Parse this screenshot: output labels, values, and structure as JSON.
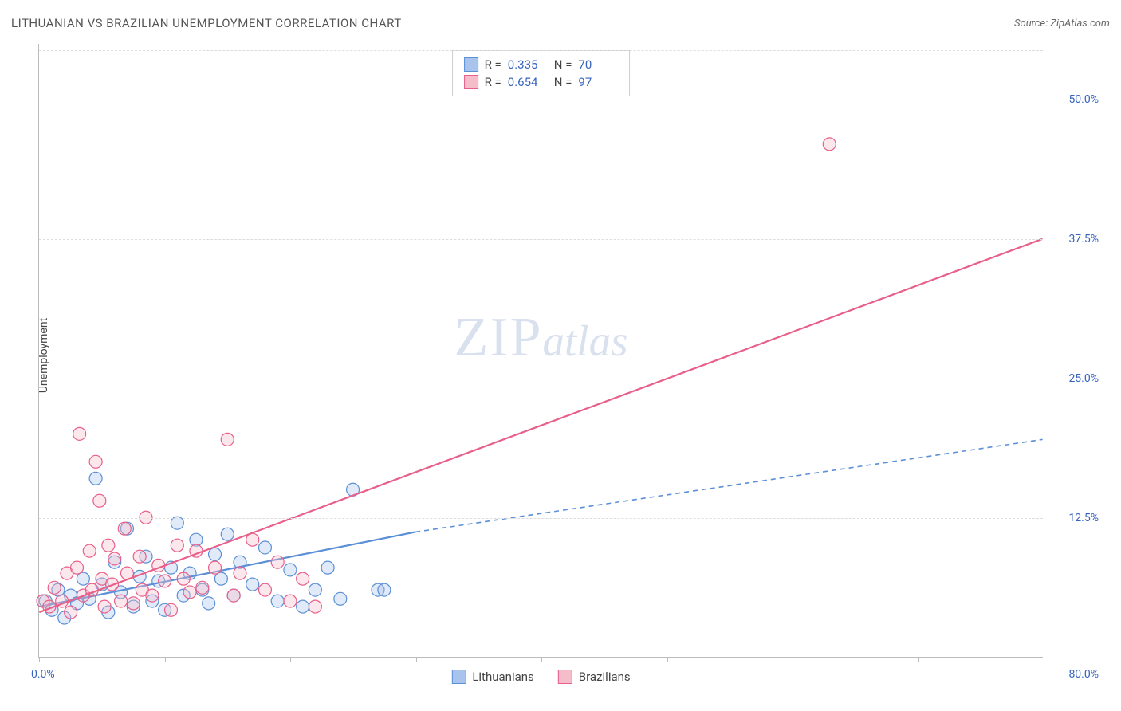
{
  "title": "LITHUANIAN VS BRAZILIAN UNEMPLOYMENT CORRELATION CHART",
  "source_label": "Source: ZipAtlas.com",
  "ylabel": "Unemployment",
  "watermark": {
    "zip": "ZIP",
    "atlas": "atlas"
  },
  "chart": {
    "type": "scatter-with-regression",
    "background_color": "#ffffff",
    "grid_color": "#dddddd",
    "axis_color": "#bbbbbb",
    "tick_label_color": "#3864c0",
    "tick_fontsize": 14,
    "xlim": [
      0,
      80
    ],
    "ylim": [
      0,
      55
    ],
    "xticks": [
      0,
      10,
      20,
      30,
      40,
      50,
      60,
      70,
      80
    ],
    "xtick_labels": {
      "0": "0.0%",
      "80": "80.0%"
    },
    "yticks": [
      12.5,
      25.0,
      37.5,
      50.0
    ],
    "ytick_labels": [
      "12.5%",
      "25.0%",
      "37.5%",
      "50.0%"
    ],
    "marker_radius": 8,
    "marker_fill_opacity": 0.35,
    "marker_stroke_width": 1.2,
    "series": [
      {
        "name": "Lithuanians",
        "color_fill": "#a9c4ec",
        "color_stroke": "#5b8fd6",
        "r_value": "0.335",
        "n_value": "70",
        "regression": {
          "solid": {
            "x1": 0,
            "y1": 4.5,
            "x2": 30,
            "y2": 11.2,
            "stroke_width": 2.2
          },
          "dashed": {
            "x1": 30,
            "y1": 11.2,
            "x2": 80,
            "y2": 19.5,
            "stroke_width": 1.6,
            "dash": "6,5"
          }
        },
        "points": [
          [
            0.5,
            5.0
          ],
          [
            1.0,
            4.2
          ],
          [
            1.5,
            6.0
          ],
          [
            2.0,
            3.5
          ],
          [
            2.5,
            5.5
          ],
          [
            3.0,
            4.8
          ],
          [
            3.5,
            7.0
          ],
          [
            4.0,
            5.2
          ],
          [
            4.5,
            16.0
          ],
          [
            5.0,
            6.5
          ],
          [
            5.5,
            4.0
          ],
          [
            6.0,
            8.5
          ],
          [
            6.5,
            5.8
          ],
          [
            7.0,
            11.5
          ],
          [
            7.5,
            4.5
          ],
          [
            8.0,
            7.2
          ],
          [
            8.5,
            9.0
          ],
          [
            9.0,
            5.0
          ],
          [
            9.5,
            6.8
          ],
          [
            10.0,
            4.2
          ],
          [
            10.5,
            8.0
          ],
          [
            11.0,
            12.0
          ],
          [
            11.5,
            5.5
          ],
          [
            12.0,
            7.5
          ],
          [
            12.5,
            10.5
          ],
          [
            13.0,
            6.0
          ],
          [
            13.5,
            4.8
          ],
          [
            14.0,
            9.2
          ],
          [
            14.5,
            7.0
          ],
          [
            15.0,
            11.0
          ],
          [
            15.5,
            5.5
          ],
          [
            16.0,
            8.5
          ],
          [
            17.0,
            6.5
          ],
          [
            18.0,
            9.8
          ],
          [
            19.0,
            5.0
          ],
          [
            20.0,
            7.8
          ],
          [
            21.0,
            4.5
          ],
          [
            22.0,
            6.0
          ],
          [
            23.0,
            8.0
          ],
          [
            24.0,
            5.2
          ],
          [
            25.0,
            15.0
          ],
          [
            27.0,
            6.0
          ],
          [
            27.5,
            6.0
          ]
        ]
      },
      {
        "name": "Brazilians",
        "color_fill": "#f5bcc9",
        "color_stroke": "#e85f8a",
        "r_value": "0.654",
        "n_value": "97",
        "regression": {
          "solid": {
            "x1": 0,
            "y1": 4.0,
            "x2": 80,
            "y2": 37.5,
            "stroke_width": 2.2
          }
        },
        "points": [
          [
            0.3,
            5.0
          ],
          [
            0.8,
            4.5
          ],
          [
            1.2,
            6.2
          ],
          [
            1.8,
            5.0
          ],
          [
            2.2,
            7.5
          ],
          [
            2.5,
            4.0
          ],
          [
            3.0,
            8.0
          ],
          [
            3.2,
            20.0
          ],
          [
            3.5,
            5.5
          ],
          [
            4.0,
            9.5
          ],
          [
            4.2,
            6.0
          ],
          [
            4.5,
            17.5
          ],
          [
            4.8,
            14.0
          ],
          [
            5.0,
            7.0
          ],
          [
            5.2,
            4.5
          ],
          [
            5.5,
            10.0
          ],
          [
            5.8,
            6.5
          ],
          [
            6.0,
            8.8
          ],
          [
            6.5,
            5.0
          ],
          [
            6.8,
            11.5
          ],
          [
            7.0,
            7.5
          ],
          [
            7.5,
            4.8
          ],
          [
            8.0,
            9.0
          ],
          [
            8.2,
            6.0
          ],
          [
            8.5,
            12.5
          ],
          [
            9.0,
            5.5
          ],
          [
            9.5,
            8.2
          ],
          [
            10.0,
            6.8
          ],
          [
            10.5,
            4.2
          ],
          [
            11.0,
            10.0
          ],
          [
            11.5,
            7.0
          ],
          [
            12.0,
            5.8
          ],
          [
            12.5,
            9.5
          ],
          [
            13.0,
            6.2
          ],
          [
            14.0,
            8.0
          ],
          [
            15.0,
            19.5
          ],
          [
            15.5,
            5.5
          ],
          [
            16.0,
            7.5
          ],
          [
            17.0,
            10.5
          ],
          [
            18.0,
            6.0
          ],
          [
            19.0,
            8.5
          ],
          [
            20.0,
            5.0
          ],
          [
            21.0,
            7.0
          ],
          [
            22.0,
            4.5
          ],
          [
            63.0,
            46.0
          ]
        ]
      }
    ]
  },
  "stats_box": {
    "r_label": "R =",
    "n_label": "N ="
  },
  "bottom_legend": {
    "items": [
      "Lithuanians",
      "Brazilians"
    ]
  }
}
